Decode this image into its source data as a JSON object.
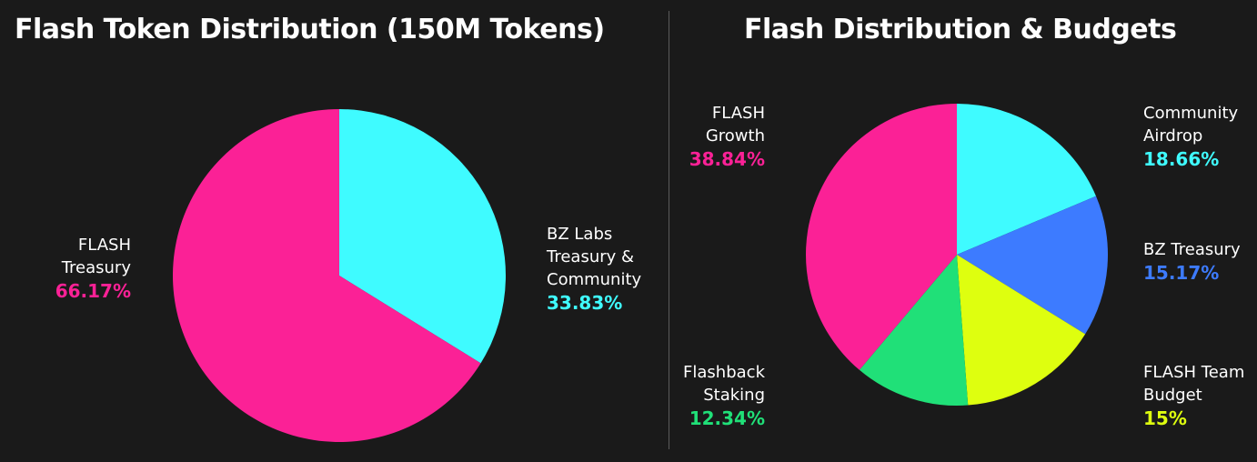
{
  "chart_data": [
    {
      "type": "pie",
      "title": "Flash Token Distribution (150M Tokens)",
      "slices": [
        {
          "label_lines": [
            "BZ Labs",
            "Treasury &",
            "Community"
          ],
          "pct_label": "33.83%",
          "value": 33.83,
          "color": "#3ffbff"
        },
        {
          "label_lines": [
            "FLASH",
            "Treasury"
          ],
          "pct_label": "66.17%",
          "value": 66.17,
          "color": "#fb2196"
        }
      ]
    },
    {
      "type": "pie",
      "title": "Flash Distribution & Budgets",
      "slices": [
        {
          "label_lines": [
            "Community",
            "Airdrop"
          ],
          "pct_label": "18.66%",
          "value": 18.66,
          "color": "#3ffbff"
        },
        {
          "label_lines": [
            "BZ Treasury"
          ],
          "pct_label": "15.17%",
          "value": 15.17,
          "color": "#3d7bff"
        },
        {
          "label_lines": [
            "FLASH Team",
            "Budget"
          ],
          "pct_label": "15%",
          "value": 15,
          "color": "#deff0f"
        },
        {
          "label_lines": [
            "Flashback",
            "Staking"
          ],
          "pct_label": "12.34%",
          "value": 12.34,
          "color": "#20e078"
        },
        {
          "label_lines": [
            "FLASH",
            "Growth"
          ],
          "pct_label": "38.84%",
          "value": 38.84,
          "color": "#fb2196"
        }
      ]
    }
  ]
}
